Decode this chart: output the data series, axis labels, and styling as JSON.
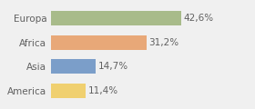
{
  "categories": [
    "Europa",
    "Africa",
    "Asia",
    "America"
  ],
  "values": [
    42.6,
    31.2,
    14.7,
    11.4
  ],
  "labels": [
    "42,6%",
    "31,2%",
    "14,7%",
    "11,4%"
  ],
  "bar_colors": [
    "#a8bb8a",
    "#e8a878",
    "#7b9ec9",
    "#f0d070"
  ],
  "background_color": "#f0f0f0",
  "xlim": [
    0,
    65
  ],
  "bar_height": 0.6,
  "label_fontsize": 7.5,
  "category_fontsize": 7.5,
  "text_color": "#606060"
}
